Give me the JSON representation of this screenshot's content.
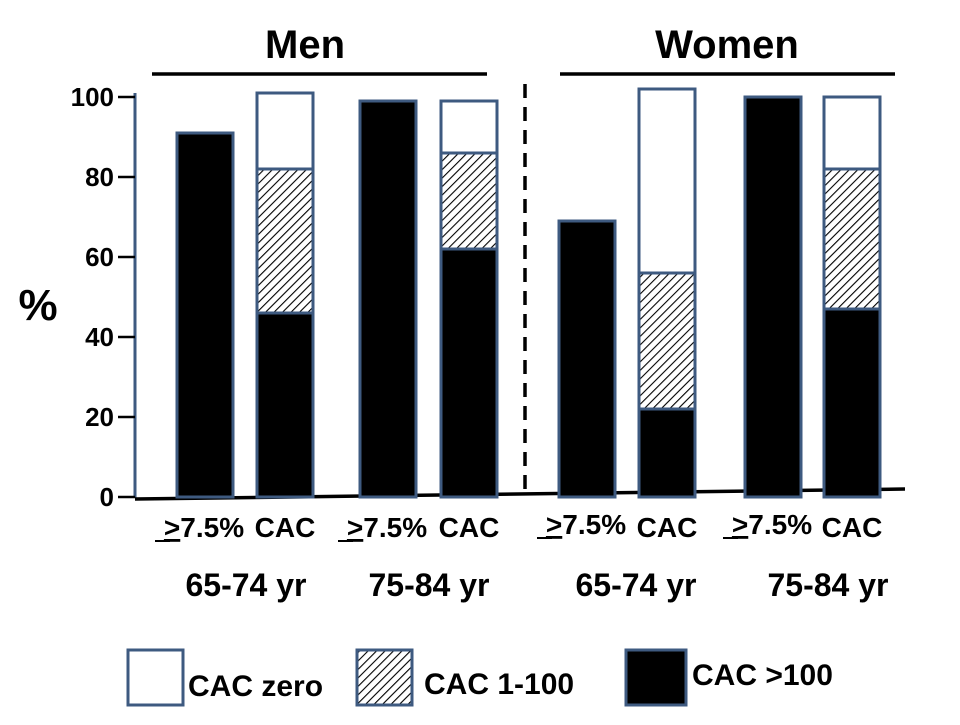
{
  "chart_data": {
    "type": "bar",
    "stacked": true,
    "ylabel": "%",
    "ylim": [
      0,
      100
    ],
    "yticks": [
      "0",
      "20",
      "40",
      "60",
      "80",
      "100"
    ],
    "grid": false,
    "panels": [
      {
        "title": "Men",
        "age_groups": [
          "65-74 yr",
          "75-84 yr"
        ]
      },
      {
        "title": "Women",
        "age_groups": [
          "65-74 yr",
          "75-84 yr"
        ]
      }
    ],
    "categories": [
      ">7.5%",
      "CAC",
      ">7.5%",
      "CAC",
      ">7.5%",
      "CAC",
      ">7.5%",
      "CAC"
    ],
    "category_marks": {
      "underlined_prefix": ">",
      "rest": "7.5%"
    },
    "series": [
      {
        "name": "CAC >100",
        "fill": "solid",
        "color": "#000000",
        "values": [
          91,
          46,
          99,
          62,
          69,
          22,
          100,
          47
        ]
      },
      {
        "name": "CAC 1-100",
        "fill": "hatched",
        "color": "#000000",
        "values": [
          0,
          36,
          0,
          24,
          0,
          34,
          0,
          35
        ]
      },
      {
        "name": "CAC zero",
        "fill": "white",
        "color": "#ffffff",
        "values": [
          0,
          19,
          0,
          13,
          0,
          46,
          0,
          18
        ]
      }
    ],
    "legend_position": "bottom",
    "bar_border_color": "#3e5a80",
    "axis_color": "#3e5a80"
  }
}
